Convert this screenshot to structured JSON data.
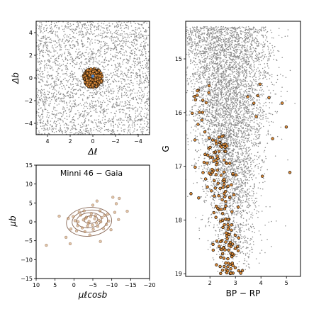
{
  "colors": {
    "field": "#8a8a8a",
    "member_fill": "#d98a3a",
    "member_edge": "#000000",
    "proper_motion_points": "#c9955f",
    "contour": "#8a6a58",
    "center_marker": "#4a7fc0"
  },
  "chart_data": [
    {
      "id": "spatial",
      "type": "scatter",
      "xlabel": "Δℓ",
      "ylabel": "Δb",
      "xlim": [
        5,
        -5
      ],
      "ylim": [
        -5,
        5
      ],
      "xticks": [
        4,
        2,
        0,
        -2,
        -4
      ],
      "yticks": [
        4,
        2,
        0,
        -2,
        -4
      ],
      "xtick_labels": [
        "4",
        "2",
        "0",
        "−2",
        "−4"
      ],
      "ytick_labels": [
        "4",
        "2",
        "0",
        "−2",
        "−4"
      ],
      "series": [
        {
          "role": "field stars",
          "distribution": "uniform",
          "count": 2600
        },
        {
          "role": "cluster members",
          "center": [
            0,
            0
          ],
          "radius": 0.85,
          "count": 260
        },
        {
          "role": "cluster center",
          "x": 0,
          "y": 0.15
        }
      ]
    },
    {
      "id": "proper_motion",
      "type": "scatter",
      "annotation": "Minni 46  −  Gaia",
      "xlabel": "μℓcosb",
      "ylabel": "μb",
      "xlim": [
        10,
        -20
      ],
      "ylim": [
        -15,
        15
      ],
      "xticks": [
        10,
        5,
        0,
        -5,
        -10,
        -15,
        -20
      ],
      "yticks": [
        15,
        10,
        5,
        0,
        -5,
        -10,
        -15
      ],
      "xtick_labels": [
        "10",
        "5",
        "0",
        "−5",
        "−10",
        "−15",
        "−20"
      ],
      "ytick_labels": [
        "15",
        "10",
        "5",
        "0",
        "−5",
        "−10",
        "−15"
      ],
      "points": [
        [
          -6.1,
          5.5
        ],
        [
          -10.3,
          6.5
        ],
        [
          -11.2,
          4.8
        ],
        [
          -5.0,
          4.4
        ],
        [
          -12.0,
          6.2
        ],
        [
          7.3,
          -6.2
        ],
        [
          1.0,
          -5.8
        ],
        [
          -7.0,
          -5.2
        ],
        [
          2.1,
          -4.1
        ],
        [
          -4.2,
          -3.5
        ],
        [
          -9.8,
          -2.1
        ],
        [
          -11.8,
          0.6
        ],
        [
          -10.8,
          2.5
        ],
        [
          3.9,
          1.5
        ],
        [
          -14.1,
          2.8
        ],
        [
          -1.0,
          -1.0
        ],
        [
          -2.5,
          0.5
        ],
        [
          -3.8,
          -0.4
        ],
        [
          -5.5,
          0.8
        ],
        [
          -6.3,
          -1.2
        ],
        [
          -0.3,
          0.3
        ],
        [
          -1.8,
          1.8
        ],
        [
          -4.6,
          2.2
        ],
        [
          -7.4,
          1.1
        ],
        [
          -8.6,
          -0.7
        ],
        [
          0.8,
          -1.9
        ],
        [
          -2.9,
          -2.6
        ],
        [
          -6.9,
          2.9
        ],
        [
          -3.3,
          1.2
        ],
        [
          -5.1,
          -2.0
        ],
        [
          1.5,
          0.9
        ],
        [
          -8.1,
          1.7
        ],
        [
          -9.2,
          0.2
        ],
        [
          -2.2,
          -1.6
        ],
        [
          -4.0,
          0.1
        ],
        [
          -1.4,
          2.6
        ],
        [
          -6.6,
          0.4
        ],
        [
          -7.8,
          -1.8
        ],
        [
          0.2,
          1.4
        ],
        [
          -3.6,
          -1.1
        ],
        [
          -5.7,
          1.6
        ],
        [
          -2.7,
          2.9
        ],
        [
          -4.9,
          -0.9
        ],
        [
          -0.7,
          -2.4
        ],
        [
          -8.9,
          2.0
        ],
        [
          -1.1,
          0.0
        ],
        [
          -6.0,
          -0.3
        ],
        [
          -3.0,
          0.9
        ],
        [
          -7.1,
          0.0
        ],
        [
          -4.4,
          1.4
        ]
      ],
      "contour_levels": [
        {
          "center": [
            -4.0,
            0.0
          ],
          "rx": 6.0,
          "ry": 3.8
        },
        {
          "center": [
            -4.2,
            0.2
          ],
          "rx": 4.7,
          "ry": 2.9
        },
        {
          "center": [
            -4.0,
            0.4
          ],
          "rx": 3.3,
          "ry": 2.0
        },
        {
          "center": [
            -4.5,
            0.6
          ],
          "rx": 1.8,
          "ry": 1.0
        }
      ]
    },
    {
      "id": "cmd",
      "type": "scatter",
      "xlabel": "BP − RP",
      "ylabel": "G",
      "xlim": [
        1.05,
        5.55
      ],
      "ylim": [
        19.05,
        14.3
      ],
      "xticks": [
        2,
        3,
        4,
        5
      ],
      "yticks": [
        15,
        16,
        17,
        18,
        19
      ],
      "xtick_labels": [
        "2",
        "3",
        "4",
        "5"
      ],
      "ytick_labels": [
        "15",
        "16",
        "17",
        "18",
        "19"
      ],
      "series": [
        {
          "role": "field stars",
          "count": 5200
        },
        {
          "role": "cluster members",
          "count": 190
        }
      ]
    }
  ]
}
